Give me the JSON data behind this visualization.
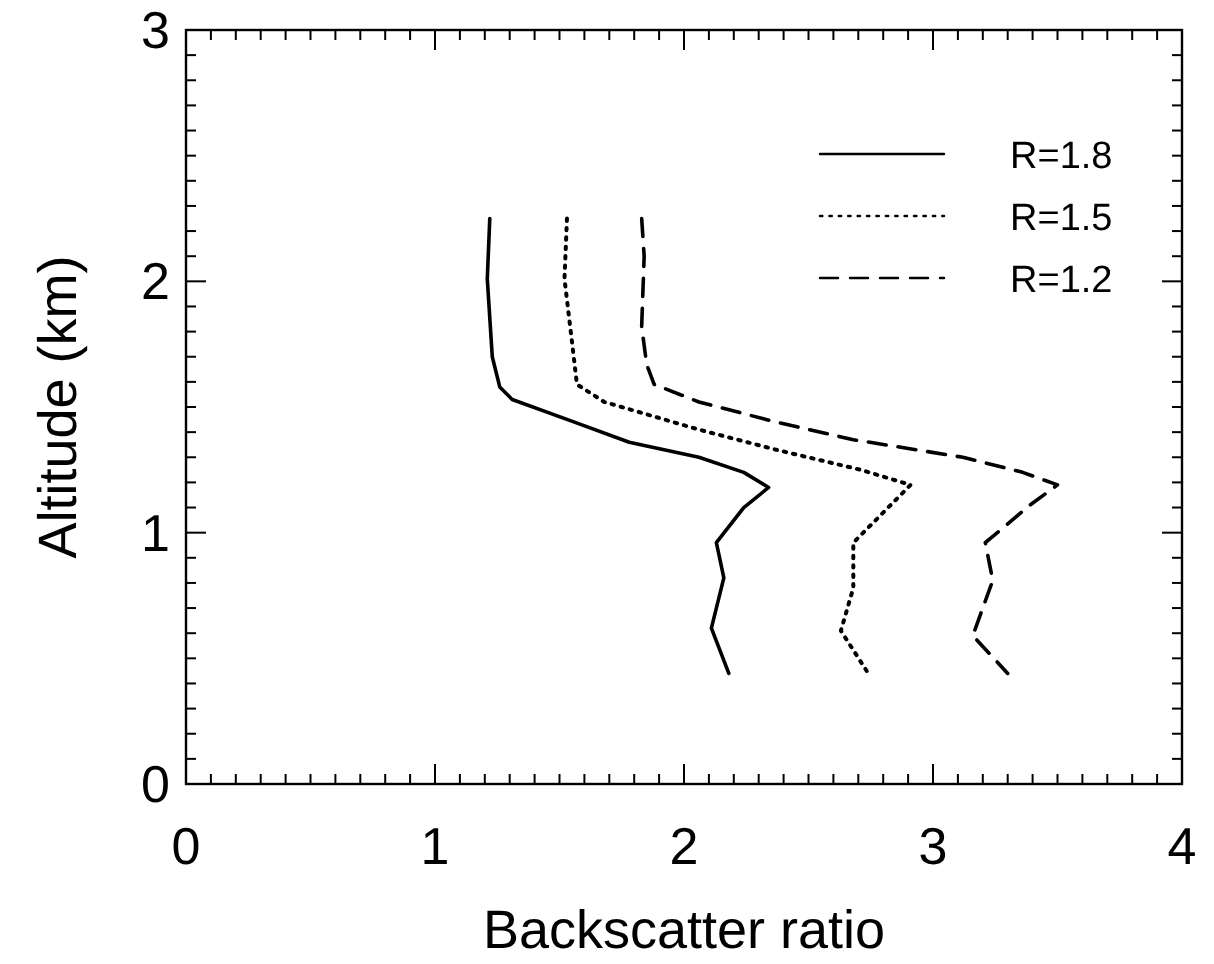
{
  "chart_data": {
    "type": "line",
    "xlabel": "Backscatter ratio",
    "ylabel": "Altitude (km)",
    "xlim": [
      0,
      4
    ],
    "ylim": [
      0,
      3
    ],
    "xticks": [
      0,
      {
        "value": 0.1,
        "label": null
      },
      {
        "value": 0.2,
        "label": null
      },
      {
        "value": 0.3,
        "label": null
      },
      {
        "value": 0.4,
        "label": null
      },
      {
        "value": 0.5,
        "label": null
      },
      {
        "value": 0.6,
        "label": null
      },
      {
        "value": 0.7,
        "label": null
      },
      {
        "value": 0.8,
        "label": null
      },
      {
        "value": 0.9,
        "label": null
      },
      1,
      {
        "value": 1.1,
        "label": null
      },
      {
        "value": 1.2,
        "label": null
      },
      {
        "value": 1.3,
        "label": null
      },
      {
        "value": 1.4,
        "label": null
      },
      {
        "value": 1.5,
        "label": null
      },
      {
        "value": 1.6,
        "label": null
      },
      {
        "value": 1.7,
        "label": null
      },
      {
        "value": 1.8,
        "label": null
      },
      {
        "value": 1.9,
        "label": null
      },
      2,
      {
        "value": 2.1,
        "label": null
      },
      {
        "value": 2.2,
        "label": null
      },
      {
        "value": 2.3,
        "label": null
      },
      {
        "value": 2.4,
        "label": null
      },
      {
        "value": 2.5,
        "label": null
      },
      {
        "value": 2.6,
        "label": null
      },
      {
        "value": 2.7,
        "label": null
      },
      {
        "value": 2.8,
        "label": null
      },
      {
        "value": 2.9,
        "label": null
      },
      3,
      {
        "value": 3.1,
        "label": null
      },
      {
        "value": 3.2,
        "label": null
      },
      {
        "value": 3.3,
        "label": null
      },
      {
        "value": 3.4,
        "label": null
      },
      {
        "value": 3.5,
        "label": null
      },
      {
        "value": 3.6,
        "label": null
      },
      {
        "value": 3.7,
        "label": null
      },
      {
        "value": 3.8,
        "label": null
      },
      {
        "value": 3.9,
        "label": null
      },
      4
    ],
    "yticks": [
      0,
      {
        "value": 0.1,
        "label": null
      },
      {
        "value": 0.2,
        "label": null
      },
      {
        "value": 0.3,
        "label": null
      },
      {
        "value": 0.4,
        "label": null
      },
      {
        "value": 0.5,
        "label": null
      },
      {
        "value": 0.6,
        "label": null
      },
      {
        "value": 0.7,
        "label": null
      },
      {
        "value": 0.8,
        "label": null
      },
      {
        "value": 0.9,
        "label": null
      },
      1,
      {
        "value": 1.1,
        "label": null
      },
      {
        "value": 1.2,
        "label": null
      },
      {
        "value": 1.3,
        "label": null
      },
      {
        "value": 1.4,
        "label": null
      },
      {
        "value": 1.5,
        "label": null
      },
      {
        "value": 1.6,
        "label": null
      },
      {
        "value": 1.7,
        "label": null
      },
      {
        "value": 1.8,
        "label": null
      },
      {
        "value": 1.9,
        "label": null
      },
      2,
      {
        "value": 2.1,
        "label": null
      },
      {
        "value": 2.2,
        "label": null
      },
      {
        "value": 2.3,
        "label": null
      },
      {
        "value": 2.4,
        "label": null
      },
      {
        "value": 2.5,
        "label": null
      },
      {
        "value": 2.6,
        "label": null
      },
      {
        "value": 2.7,
        "label": null
      },
      {
        "value": 2.8,
        "label": null
      },
      {
        "value": 2.9,
        "label": null
      },
      3
    ],
    "grid": false,
    "legend": "top right",
    "series": [
      {
        "name": "R=1.8",
        "color": "#000000",
        "line_style": "solid",
        "x": [
          1.22,
          1.21,
          1.23,
          1.26,
          1.31,
          1.56,
          1.78,
          2.06,
          2.24,
          2.34,
          2.24,
          2.13,
          2.16,
          2.11,
          2.18
        ],
        "values": [
          2.25,
          2.01,
          1.7,
          1.58,
          1.53,
          1.44,
          1.36,
          1.3,
          1.24,
          1.18,
          1.1,
          0.96,
          0.82,
          0.62,
          0.44
        ]
      },
      {
        "name": "R=1.5",
        "color": "#000000",
        "line_style": "dotted",
        "x": [
          1.53,
          1.52,
          1.55,
          1.57,
          1.68,
          2.06,
          2.37,
          2.71,
          2.91,
          2.8,
          2.68,
          2.68,
          2.63,
          2.74
        ],
        "values": [
          2.25,
          2.01,
          1.76,
          1.59,
          1.52,
          1.41,
          1.33,
          1.25,
          1.19,
          1.08,
          0.96,
          0.78,
          0.61,
          0.44
        ]
      },
      {
        "name": "R=1.2",
        "color": "#000000",
        "line_style": "dashed",
        "x": [
          1.83,
          1.84,
          1.83,
          1.85,
          1.88,
          2.06,
          2.37,
          2.68,
          3.12,
          3.36,
          3.5,
          3.39,
          3.21,
          3.24,
          3.16,
          3.3
        ],
        "values": [
          2.25,
          2.1,
          1.82,
          1.67,
          1.59,
          1.52,
          1.44,
          1.37,
          1.3,
          1.24,
          1.19,
          1.11,
          0.96,
          0.81,
          0.59,
          0.44
        ]
      }
    ]
  }
}
